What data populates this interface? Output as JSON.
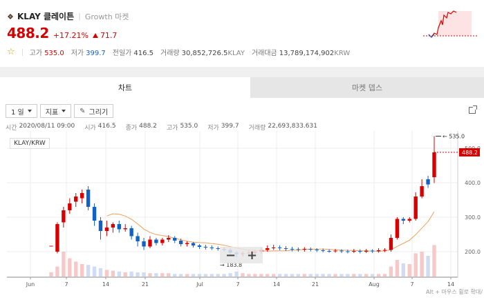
{
  "coin": {
    "name": "KLAY 클레이튼",
    "market": "Growth 마켓",
    "price": "488.2",
    "change_pct": "+17.21%",
    "change_abs": "71.7"
  },
  "stats": {
    "high_label": "고가",
    "high": "535.0",
    "low_label": "저가",
    "low": "399.7",
    "prev_label": "전일가",
    "prev": "416.5",
    "volume_label": "거래량",
    "volume": "30,852,726.5",
    "volume_unit": "KLAY",
    "amount_label": "거래대금",
    "amount": "13,789,174,902",
    "amount_unit": "KRW"
  },
  "tabs": [
    "차트",
    "마켓 뎁스"
  ],
  "toolbar": {
    "period": "1 일",
    "indicator": "지표",
    "draw": "그리기"
  },
  "ohlc": {
    "time_label": "시간",
    "time": "2020/08/11 09:00",
    "open_label": "시가",
    "open": "416.5",
    "close_label": "종가",
    "close": "488.2",
    "high_label": "고가",
    "high": "535.0",
    "low_label": "저가",
    "low": "399.7",
    "vol_label": "거래량",
    "vol": "22,693,833.631"
  },
  "chart_pair": "KLAY/KRW",
  "zoom": {
    "minus": "−",
    "plus": "+"
  },
  "hint": "Alt + 마우스 휠로 확대/",
  "colors": {
    "up": "#d60000",
    "down": "#1261c4",
    "ma": "#f0a05a",
    "ma2": "#7fd4d8"
  },
  "chart_data": {
    "type": "candlestick",
    "x_ticks": [
      "Jun",
      "7",
      "14",
      "21",
      "Jul",
      "7",
      "14",
      "21",
      "Aug",
      "7",
      "14"
    ],
    "y_ticks": [
      "200.0",
      "300.0",
      "400.0",
      "500.0"
    ],
    "max_marker": "535.0",
    "min_marker": "183.8",
    "last_price": "488.2",
    "candles": [
      {
        "o": 217,
        "c": 217,
        "h": 217,
        "l": 217
      },
      {
        "o": 200,
        "c": 280,
        "h": 285,
        "l": 195
      },
      {
        "o": 285,
        "c": 320,
        "h": 330,
        "l": 270
      },
      {
        "o": 320,
        "c": 340,
        "h": 355,
        "l": 310
      },
      {
        "o": 345,
        "c": 360,
        "h": 370,
        "l": 330
      },
      {
        "o": 355,
        "c": 370,
        "h": 380,
        "l": 340
      },
      {
        "o": 380,
        "c": 330,
        "h": 390,
        "l": 320
      },
      {
        "o": 330,
        "c": 290,
        "h": 340,
        "l": 275
      },
      {
        "o": 290,
        "c": 260,
        "h": 300,
        "l": 235
      },
      {
        "o": 260,
        "c": 270,
        "h": 290,
        "l": 245
      },
      {
        "o": 270,
        "c": 280,
        "h": 285,
        "l": 255
      },
      {
        "o": 280,
        "c": 265,
        "h": 290,
        "l": 255
      },
      {
        "o": 265,
        "c": 268,
        "h": 280,
        "l": 258
      },
      {
        "o": 268,
        "c": 245,
        "h": 275,
        "l": 235
      },
      {
        "o": 245,
        "c": 230,
        "h": 255,
        "l": 215
      },
      {
        "o": 230,
        "c": 215,
        "h": 240,
        "l": 205
      },
      {
        "o": 215,
        "c": 235,
        "h": 245,
        "l": 210
      },
      {
        "o": 235,
        "c": 225,
        "h": 240,
        "l": 218
      },
      {
        "o": 225,
        "c": 235,
        "h": 240,
        "l": 218
      },
      {
        "o": 235,
        "c": 240,
        "h": 248,
        "l": 228
      },
      {
        "o": 240,
        "c": 232,
        "h": 245,
        "l": 225
      },
      {
        "o": 232,
        "c": 222,
        "h": 238,
        "l": 215
      },
      {
        "o": 222,
        "c": 225,
        "h": 230,
        "l": 215
      },
      {
        "o": 225,
        "c": 218,
        "h": 228,
        "l": 212
      },
      {
        "o": 218,
        "c": 214,
        "h": 222,
        "l": 208
      },
      {
        "o": 214,
        "c": 212,
        "h": 220,
        "l": 206
      },
      {
        "o": 212,
        "c": 210,
        "h": 218,
        "l": 205
      },
      {
        "o": 210,
        "c": 208,
        "h": 215,
        "l": 203
      },
      {
        "o": 208,
        "c": 205,
        "h": 214,
        "l": 200
      },
      {
        "o": 205,
        "c": 197,
        "h": 210,
        "l": 188
      },
      {
        "o": 197,
        "c": 193,
        "h": 202,
        "l": 184
      },
      {
        "o": 193,
        "c": 195,
        "h": 200,
        "l": 186
      },
      {
        "o": 195,
        "c": 197,
        "h": 203,
        "l": 188
      },
      {
        "o": 197,
        "c": 200,
        "h": 205,
        "l": 192
      },
      {
        "o": 200,
        "c": 205,
        "h": 212,
        "l": 195
      },
      {
        "o": 205,
        "c": 210,
        "h": 218,
        "l": 200
      },
      {
        "o": 210,
        "c": 212,
        "h": 220,
        "l": 205
      },
      {
        "o": 212,
        "c": 210,
        "h": 218,
        "l": 204
      },
      {
        "o": 210,
        "c": 208,
        "h": 216,
        "l": 202
      },
      {
        "o": 208,
        "c": 207,
        "h": 214,
        "l": 201
      },
      {
        "o": 207,
        "c": 206,
        "h": 212,
        "l": 200
      },
      {
        "o": 206,
        "c": 208,
        "h": 213,
        "l": 200
      },
      {
        "o": 208,
        "c": 206,
        "h": 212,
        "l": 201
      },
      {
        "o": 206,
        "c": 204,
        "h": 210,
        "l": 199
      },
      {
        "o": 204,
        "c": 202,
        "h": 209,
        "l": 198
      },
      {
        "o": 202,
        "c": 201,
        "h": 207,
        "l": 197
      },
      {
        "o": 201,
        "c": 203,
        "h": 208,
        "l": 197
      },
      {
        "o": 203,
        "c": 201,
        "h": 207,
        "l": 196
      },
      {
        "o": 201,
        "c": 200,
        "h": 206,
        "l": 195
      },
      {
        "o": 200,
        "c": 202,
        "h": 208,
        "l": 196
      },
      {
        "o": 202,
        "c": 200,
        "h": 207,
        "l": 195
      },
      {
        "o": 200,
        "c": 203,
        "h": 208,
        "l": 196
      },
      {
        "o": 203,
        "c": 201,
        "h": 207,
        "l": 196
      },
      {
        "o": 201,
        "c": 204,
        "h": 210,
        "l": 197
      },
      {
        "o": 204,
        "c": 205,
        "h": 210,
        "l": 199
      },
      {
        "o": 205,
        "c": 240,
        "h": 250,
        "l": 200
      },
      {
        "o": 240,
        "c": 295,
        "h": 300,
        "l": 235
      },
      {
        "o": 295,
        "c": 290,
        "h": 300,
        "l": 280
      },
      {
        "o": 290,
        "c": 295,
        "h": 300,
        "l": 285
      },
      {
        "o": 295,
        "c": 360,
        "h": 372,
        "l": 290
      },
      {
        "o": 360,
        "c": 390,
        "h": 410,
        "l": 355
      },
      {
        "o": 410,
        "c": 395,
        "h": 420,
        "l": 385
      },
      {
        "o": 416,
        "c": 488,
        "h": 535,
        "l": 399
      }
    ],
    "volumes": [
      5,
      12,
      30,
      22,
      18,
      15,
      14,
      12,
      10,
      8,
      7,
      6,
      5,
      6,
      5,
      5,
      4,
      4,
      4,
      4,
      3,
      3,
      3,
      3,
      3,
      3,
      3,
      3,
      3,
      4,
      6,
      4,
      3,
      3,
      3,
      3,
      3,
      3,
      3,
      3,
      3,
      3,
      3,
      3,
      3,
      3,
      3,
      3,
      3,
      3,
      3,
      3,
      3,
      3,
      3,
      12,
      20,
      16,
      15,
      28,
      30,
      25,
      38
    ],
    "ma_long": [
      null,
      null,
      null,
      null,
      null,
      null,
      null,
      null,
      null,
      null,
      null,
      null,
      null,
      null,
      null,
      null,
      null,
      null,
      null,
      null,
      null,
      null,
      null,
      null,
      null,
      null,
      null,
      null,
      null,
      null,
      null,
      null,
      null,
      null,
      null,
      null,
      null,
      null,
      null,
      null,
      null,
      null,
      null,
      null,
      null,
      null,
      null,
      null,
      null,
      null,
      null,
      null,
      null,
      null,
      null,
      null,
      null,
      null,
      null,
      null,
      null,
      null,
      null
    ]
  }
}
